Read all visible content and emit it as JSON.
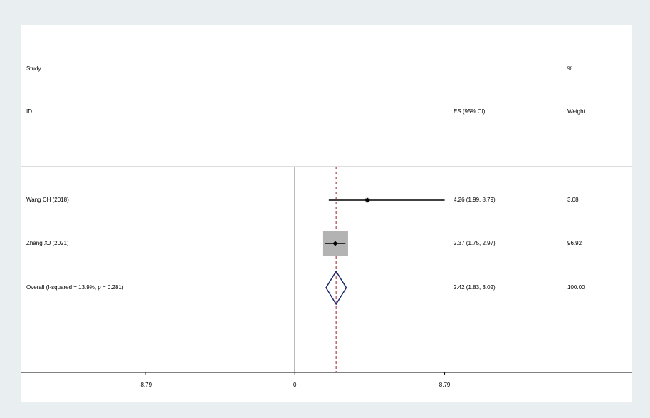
{
  "chart_data": {
    "type": "forest",
    "header": {
      "study": "Study",
      "id": "ID",
      "es": "ES (95% CI)",
      "pct": "%",
      "weight": "Weight"
    },
    "categories": [
      "Wang CH (2018)",
      "Zhang XJ (2021)",
      "Overall  (I-squared = 13.9%, p = 0.281)"
    ],
    "es": [
      4.26,
      2.37,
      2.42
    ],
    "lo": [
      1.99,
      1.75,
      1.83
    ],
    "hi": [
      8.79,
      2.97,
      3.02
    ],
    "value_labels": [
      "4.26 (1.99, 8.79)",
      "2.37 (1.75, 2.97)",
      "2.42 (1.83, 3.02)"
    ],
    "weights": [
      3.08,
      96.92,
      100
    ],
    "weight_labels": [
      "3.08",
      "96.92",
      "100.00"
    ],
    "xlim": [
      -16.1,
      19.8
    ],
    "xticks": [
      -8.79,
      0,
      8.79
    ]
  }
}
